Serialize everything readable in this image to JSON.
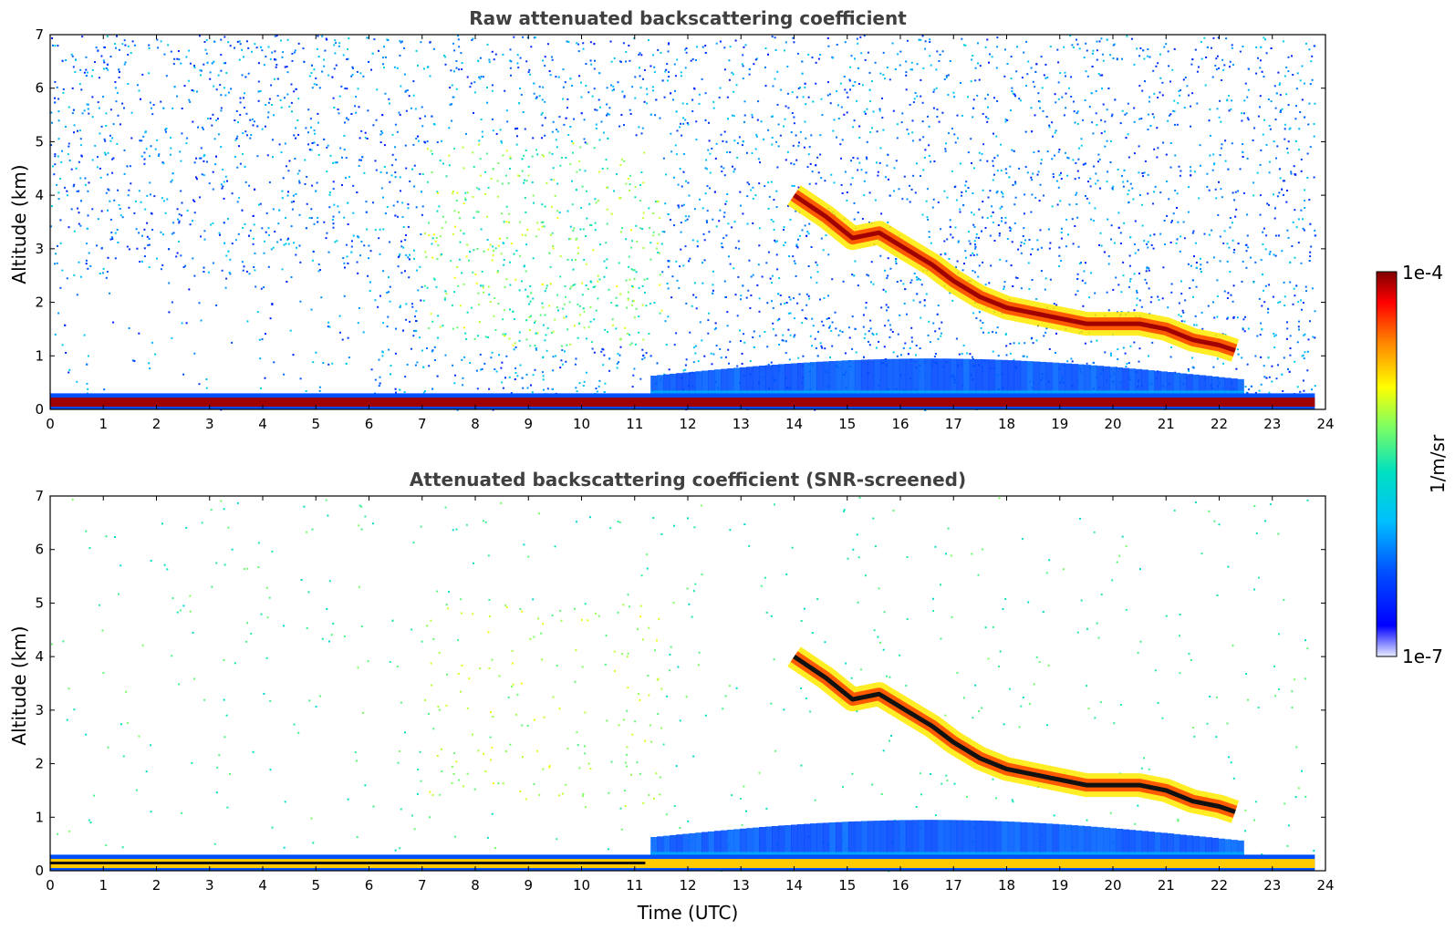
{
  "chart_data": [
    {
      "type": "heatmap",
      "title": "Raw attenuated backscattering coefficient",
      "xlabel": "",
      "ylabel": "Altitude (km)",
      "xlim": [
        0,
        24
      ],
      "ylim": [
        0,
        7
      ],
      "xticks": [
        "0",
        "1",
        "2",
        "3",
        "4",
        "5",
        "6",
        "7",
        "8",
        "9",
        "10",
        "11",
        "12",
        "13",
        "14",
        "15",
        "16",
        "17",
        "18",
        "19",
        "20",
        "21",
        "22",
        "23",
        "24"
      ],
      "yticks": [
        "0",
        "1",
        "2",
        "3",
        "4",
        "5",
        "6",
        "7"
      ],
      "screened": false,
      "features": {
        "surface_layer": {
          "time": [
            0,
            23.8
          ],
          "altitude_top": 0.3
        },
        "cloud_layer": {
          "time": [
            14.0,
            14.6,
            15.1,
            15.6,
            16.1,
            16.6,
            17.0,
            17.5,
            18.0,
            18.5,
            19.0,
            19.5,
            20.0,
            20.5,
            21.0,
            21.5,
            22.0,
            22.3
          ],
          "altitude": [
            4.0,
            3.6,
            3.2,
            3.3,
            3.0,
            2.7,
            2.4,
            2.1,
            1.9,
            1.8,
            1.7,
            1.6,
            1.6,
            1.6,
            1.5,
            1.3,
            1.2,
            1.1
          ]
        },
        "aerosol_plume": {
          "time": [
            7,
            11
          ],
          "altitude": [
            1.5,
            4.5
          ]
        }
      }
    },
    {
      "type": "heatmap",
      "title": "Attenuated backscattering coefficient (SNR-screened)",
      "xlabel": "Time (UTC)",
      "ylabel": "Altitude (km)",
      "xlim": [
        0,
        24
      ],
      "ylim": [
        0,
        7
      ],
      "xticks": [
        "0",
        "1",
        "2",
        "3",
        "4",
        "5",
        "6",
        "7",
        "8",
        "9",
        "10",
        "11",
        "12",
        "13",
        "14",
        "15",
        "16",
        "17",
        "18",
        "19",
        "20",
        "21",
        "22",
        "23",
        "24"
      ],
      "yticks": [
        "0",
        "1",
        "2",
        "3",
        "4",
        "5",
        "6",
        "7"
      ],
      "screened": true,
      "features": {
        "surface_layer": {
          "time": [
            0,
            23.8
          ],
          "altitude_top": 0.3
        },
        "cloud_layer": {
          "time": [
            14.0,
            14.6,
            15.1,
            15.6,
            16.1,
            16.6,
            17.0,
            17.5,
            18.0,
            18.5,
            19.0,
            19.5,
            20.0,
            20.5,
            21.0,
            21.5,
            22.0,
            22.3
          ],
          "altitude": [
            4.0,
            3.6,
            3.2,
            3.3,
            3.0,
            2.7,
            2.4,
            2.1,
            1.9,
            1.8,
            1.7,
            1.6,
            1.6,
            1.6,
            1.5,
            1.3,
            1.2,
            1.1
          ]
        },
        "aerosol_plume": {
          "time": [
            7,
            11
          ],
          "altitude": [
            1.5,
            4.5
          ]
        }
      }
    }
  ],
  "colorbar": {
    "label": "1/m/sr",
    "max_label": "1e-4",
    "min_label": "1e-7",
    "colormap": "jet",
    "scale": "log",
    "range": [
      1e-07,
      0.0001
    ]
  }
}
